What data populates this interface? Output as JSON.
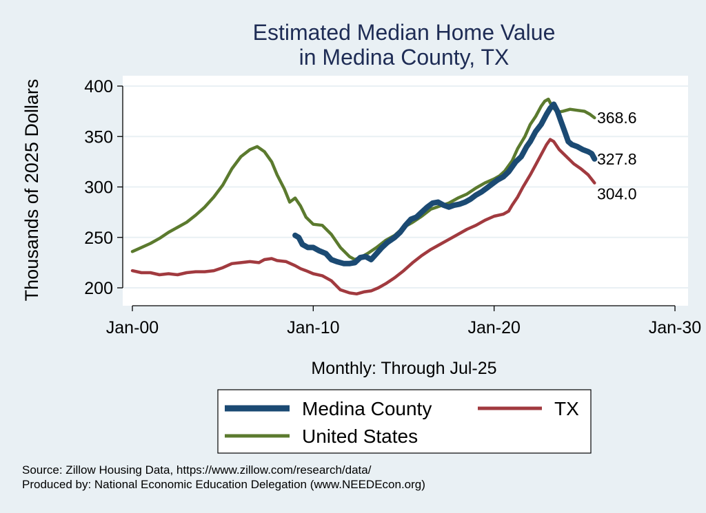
{
  "chart_data": {
    "type": "line",
    "title": [
      "Estimated Median Home Value",
      "in Medina County, TX"
    ],
    "ylabel": "Thousands of 2025 Dollars",
    "xlabel": "Monthly: Through Jul-25",
    "xticks": [
      "Jan-00",
      "Jan-10",
      "Jan-20",
      "Jan-30"
    ],
    "yticks": [
      200,
      250,
      300,
      350,
      400
    ],
    "xlim": [
      2000,
      2030
    ],
    "ylim": [
      190,
      410
    ],
    "grid": true,
    "legend_position": "bottom",
    "end_labels": [
      "368.6",
      "327.8",
      "304.0"
    ],
    "series": [
      {
        "name": "Medina County",
        "color": "#1b4a73",
        "points": [
          [
            2009.0,
            252
          ],
          [
            2009.2,
            250
          ],
          [
            2009.4,
            243
          ],
          [
            2009.7,
            240
          ],
          [
            2010.0,
            240
          ],
          [
            2010.3,
            237
          ],
          [
            2010.7,
            234
          ],
          [
            2011.0,
            228
          ],
          [
            2011.3,
            226
          ],
          [
            2011.7,
            224
          ],
          [
            2012.0,
            224
          ],
          [
            2012.3,
            225
          ],
          [
            2012.6,
            230
          ],
          [
            2012.9,
            231
          ],
          [
            2013.2,
            228
          ],
          [
            2013.5,
            234
          ],
          [
            2013.8,
            240
          ],
          [
            2014.1,
            245
          ],
          [
            2014.5,
            250
          ],
          [
            2014.8,
            255
          ],
          [
            2015.1,
            262
          ],
          [
            2015.4,
            268
          ],
          [
            2015.7,
            270
          ],
          [
            2016.0,
            275
          ],
          [
            2016.3,
            280
          ],
          [
            2016.6,
            284
          ],
          [
            2016.9,
            285
          ],
          [
            2017.2,
            282
          ],
          [
            2017.5,
            280
          ],
          [
            2017.8,
            282
          ],
          [
            2018.1,
            283
          ],
          [
            2018.4,
            285
          ],
          [
            2018.7,
            288
          ],
          [
            2019.0,
            292
          ],
          [
            2019.3,
            295
          ],
          [
            2019.6,
            299
          ],
          [
            2019.9,
            303
          ],
          [
            2020.2,
            307
          ],
          [
            2020.5,
            310
          ],
          [
            2020.8,
            315
          ],
          [
            2021.0,
            320
          ],
          [
            2021.2,
            325
          ],
          [
            2021.5,
            330
          ],
          [
            2021.8,
            340
          ],
          [
            2022.0,
            345
          ],
          [
            2022.3,
            355
          ],
          [
            2022.6,
            362
          ],
          [
            2022.9,
            372
          ],
          [
            2023.1,
            378
          ],
          [
            2023.3,
            382
          ],
          [
            2023.5,
            375
          ],
          [
            2023.7,
            365
          ],
          [
            2023.9,
            355
          ],
          [
            2024.1,
            345
          ],
          [
            2024.3,
            342
          ],
          [
            2024.6,
            340
          ],
          [
            2024.9,
            337
          ],
          [
            2025.2,
            335
          ],
          [
            2025.4,
            333
          ],
          [
            2025.55,
            327.8
          ]
        ]
      },
      {
        "name": "TX",
        "color": "#a13a3f",
        "points": [
          [
            2000.0,
            217
          ],
          [
            2000.5,
            215
          ],
          [
            2001.0,
            215
          ],
          [
            2001.5,
            213
          ],
          [
            2002.0,
            214
          ],
          [
            2002.5,
            213
          ],
          [
            2003.0,
            215
          ],
          [
            2003.5,
            216
          ],
          [
            2004.0,
            216
          ],
          [
            2004.5,
            217
          ],
          [
            2005.0,
            220
          ],
          [
            2005.5,
            224
          ],
          [
            2006.0,
            225
          ],
          [
            2006.5,
            226
          ],
          [
            2007.0,
            225
          ],
          [
            2007.3,
            228
          ],
          [
            2007.7,
            229
          ],
          [
            2008.0,
            227
          ],
          [
            2008.5,
            226
          ],
          [
            2009.0,
            222
          ],
          [
            2009.3,
            219
          ],
          [
            2009.6,
            217
          ],
          [
            2010.0,
            214
          ],
          [
            2010.5,
            212
          ],
          [
            2011.0,
            207
          ],
          [
            2011.5,
            198
          ],
          [
            2012.0,
            195
          ],
          [
            2012.4,
            194
          ],
          [
            2012.8,
            196
          ],
          [
            2013.2,
            197
          ],
          [
            2013.6,
            200
          ],
          [
            2014.0,
            204
          ],
          [
            2014.5,
            210
          ],
          [
            2015.0,
            217
          ],
          [
            2015.5,
            225
          ],
          [
            2016.0,
            232
          ],
          [
            2016.5,
            238
          ],
          [
            2017.0,
            243
          ],
          [
            2017.5,
            248
          ],
          [
            2018.0,
            253
          ],
          [
            2018.5,
            258
          ],
          [
            2019.0,
            262
          ],
          [
            2019.5,
            267
          ],
          [
            2020.0,
            271
          ],
          [
            2020.5,
            273
          ],
          [
            2020.8,
            276
          ],
          [
            2021.0,
            282
          ],
          [
            2021.3,
            290
          ],
          [
            2021.6,
            300
          ],
          [
            2022.0,
            312
          ],
          [
            2022.3,
            322
          ],
          [
            2022.6,
            332
          ],
          [
            2022.9,
            342
          ],
          [
            2023.1,
            347
          ],
          [
            2023.3,
            345
          ],
          [
            2023.6,
            337
          ],
          [
            2024.0,
            330
          ],
          [
            2024.4,
            323
          ],
          [
            2024.8,
            318
          ],
          [
            2025.2,
            312
          ],
          [
            2025.55,
            304
          ]
        ]
      },
      {
        "name": "United States",
        "color": "#5b7a2e",
        "points": [
          [
            2000.0,
            236
          ],
          [
            2000.5,
            240
          ],
          [
            2001.0,
            244
          ],
          [
            2001.5,
            249
          ],
          [
            2002.0,
            255
          ],
          [
            2002.5,
            260
          ],
          [
            2003.0,
            265
          ],
          [
            2003.5,
            272
          ],
          [
            2004.0,
            280
          ],
          [
            2004.5,
            290
          ],
          [
            2005.0,
            302
          ],
          [
            2005.5,
            318
          ],
          [
            2006.0,
            330
          ],
          [
            2006.5,
            337
          ],
          [
            2006.9,
            340
          ],
          [
            2007.3,
            335
          ],
          [
            2007.7,
            325
          ],
          [
            2008.0,
            312
          ],
          [
            2008.4,
            298
          ],
          [
            2008.7,
            285
          ],
          [
            2009.0,
            289
          ],
          [
            2009.3,
            281
          ],
          [
            2009.6,
            270
          ],
          [
            2010.0,
            263
          ],
          [
            2010.5,
            262
          ],
          [
            2011.0,
            253
          ],
          [
            2011.5,
            240
          ],
          [
            2012.0,
            231
          ],
          [
            2012.3,
            228
          ],
          [
            2012.7,
            231
          ],
          [
            2013.0,
            234
          ],
          [
            2013.5,
            240
          ],
          [
            2014.0,
            247
          ],
          [
            2014.5,
            252
          ],
          [
            2015.0,
            260
          ],
          [
            2015.5,
            265
          ],
          [
            2016.0,
            271
          ],
          [
            2016.5,
            278
          ],
          [
            2017.0,
            281
          ],
          [
            2017.5,
            284
          ],
          [
            2018.0,
            289
          ],
          [
            2018.5,
            293
          ],
          [
            2019.0,
            299
          ],
          [
            2019.5,
            304
          ],
          [
            2020.0,
            308
          ],
          [
            2020.3,
            311
          ],
          [
            2020.6,
            316
          ],
          [
            2021.0,
            326
          ],
          [
            2021.3,
            338
          ],
          [
            2021.7,
            350
          ],
          [
            2022.0,
            362
          ],
          [
            2022.3,
            370
          ],
          [
            2022.6,
            380
          ],
          [
            2022.8,
            385
          ],
          [
            2023.0,
            387
          ],
          [
            2023.2,
            380
          ],
          [
            2023.5,
            374
          ],
          [
            2023.8,
            375
          ],
          [
            2024.2,
            377
          ],
          [
            2024.6,
            376
          ],
          [
            2025.0,
            375
          ],
          [
            2025.3,
            372
          ],
          [
            2025.55,
            368.6
          ]
        ]
      }
    ],
    "notes": [
      "Source: Zillow Housing Data, https://www.zillow.com/research/data/",
      "Produced by: National Economic Education Delegation (www.NEEDEcon.org)"
    ]
  }
}
